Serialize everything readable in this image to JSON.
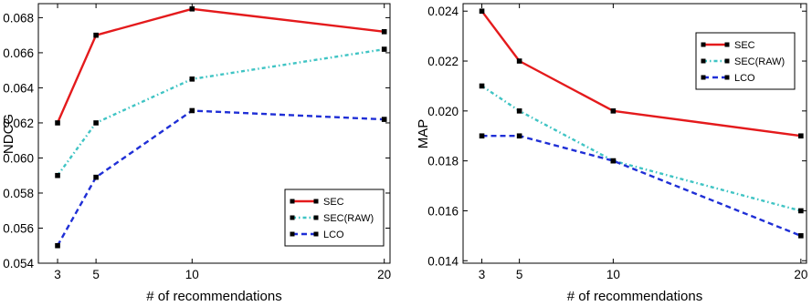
{
  "chart_data": [
    {
      "type": "line",
      "xlabel": "# of recommendations",
      "ylabel": "NDCG",
      "x": [
        3,
        5,
        10,
        20
      ],
      "x_ticks": [
        "3",
        "5",
        "10",
        "20"
      ],
      "xlim": [
        2,
        20.3
      ],
      "ylim": [
        0.054,
        0.0688
      ],
      "y_ticks": [
        "0.054",
        "0.056",
        "0.058",
        "0.060",
        "0.062",
        "0.064",
        "0.066",
        "0.068"
      ],
      "legend_position": "bottom-right",
      "grid": false,
      "series": [
        {
          "name": "SEC",
          "values": [
            0.062,
            0.067,
            0.0685,
            0.0672
          ],
          "color": "#e41a1c",
          "style": "solid"
        },
        {
          "name": "SEC(RAW)",
          "values": [
            0.059,
            0.062,
            0.0645,
            0.0662
          ],
          "color": "#3fc4c4",
          "style": "dashdot"
        },
        {
          "name": "LCO",
          "values": [
            0.055,
            0.0589,
            0.0627,
            0.0622
          ],
          "color": "#1f2fd6",
          "style": "dashed"
        }
      ]
    },
    {
      "type": "line",
      "xlabel": "# of recommendations",
      "ylabel": "MAP",
      "x": [
        3,
        5,
        10,
        20
      ],
      "x_ticks": [
        "3",
        "5",
        "10",
        "20"
      ],
      "xlim": [
        2,
        20.3
      ],
      "ylim": [
        0.0139,
        0.0243
      ],
      "y_ticks": [
        "0.014",
        "0.016",
        "0.018",
        "0.020",
        "0.022",
        "0.024"
      ],
      "legend_position": "top-right",
      "grid": false,
      "series": [
        {
          "name": "SEC",
          "values": [
            0.024,
            0.022,
            0.02,
            0.019
          ],
          "color": "#e41a1c",
          "style": "solid"
        },
        {
          "name": "SEC(RAW)",
          "values": [
            0.021,
            0.02,
            0.018,
            0.016
          ],
          "color": "#3fc4c4",
          "style": "dashdot"
        },
        {
          "name": "LCO",
          "values": [
            0.019,
            0.019,
            0.018,
            0.015
          ],
          "color": "#1f2fd6",
          "style": "dashed"
        }
      ]
    }
  ]
}
